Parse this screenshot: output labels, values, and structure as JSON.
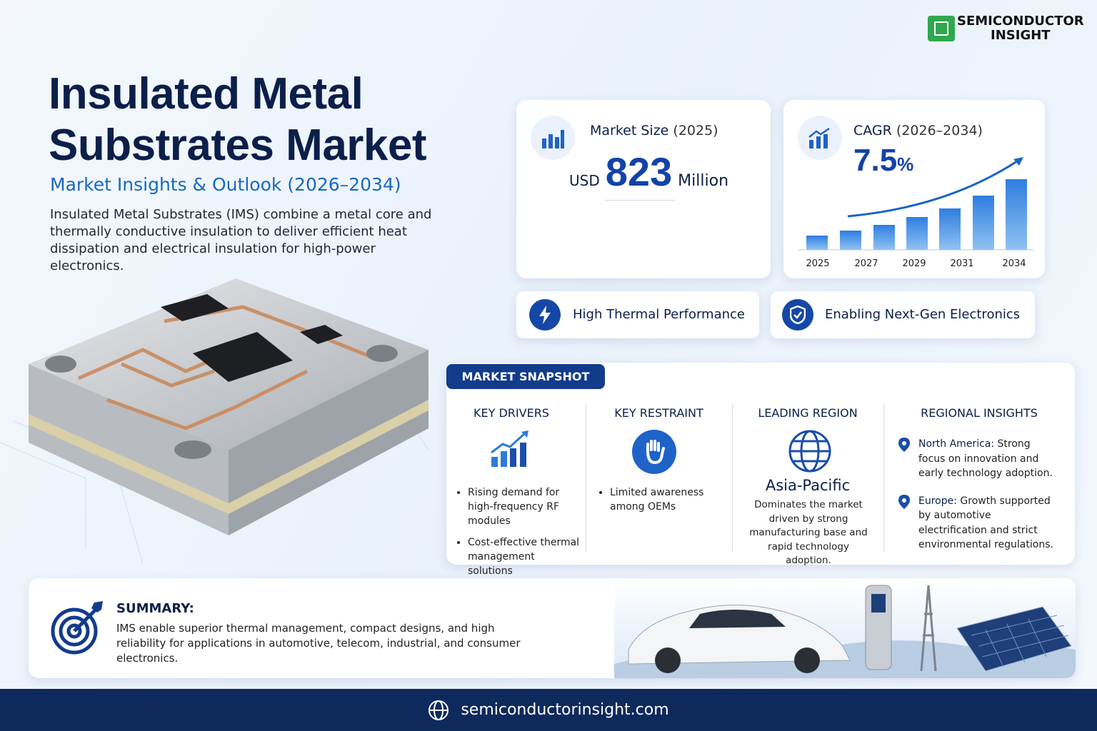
{
  "logo": {
    "line1": "SEMICONDUCTOR",
    "line2": "INSIGHT"
  },
  "header": {
    "title_line1": "Insulated Metal",
    "title_line2": "Substrates Market",
    "subtitle": "Market Insights & Outlook (2026–2034)",
    "description": "Insulated Metal Substrates (IMS) combine a metal core and thermally conductive insulation to deliver efficient heat dissipation and electrical insulation for high-power electronics."
  },
  "market_size": {
    "label": "Market Size",
    "period": "(2025)",
    "currency": "USD",
    "value": 823,
    "unit": "Million"
  },
  "cagr": {
    "label": "CAGR",
    "period": "(2026–2034)",
    "value": 7.5,
    "unit": "%",
    "years": [
      "2025",
      "2027",
      "2029",
      "2031",
      "2034"
    ]
  },
  "features": [
    "High Thermal Performance",
    "Enabling Next-Gen Electronics"
  ],
  "snapshot": {
    "title": "MARKET SNAPSHOT",
    "drivers": {
      "heading": "KEY DRIVERS",
      "items": [
        "Rising demand for high-frequency RF modules",
        "Cost-effective thermal management solutions"
      ]
    },
    "restraint": {
      "heading": "KEY RESTRAINT",
      "items": [
        "Limited awareness among OEMs"
      ]
    },
    "region": {
      "heading": "LEADING REGION",
      "name": "Asia-Pacific",
      "text": "Dominates the market driven by strong manufacturing base and rapid technology adoption."
    },
    "insights": {
      "heading": "REGIONAL INSIGHTS",
      "items": [
        {
          "region": "North America:",
          "text": "Strong focus on innovation and early technology adoption."
        },
        {
          "region": "Europe:",
          "text": "Growth supported by automotive electrification and strict environmental regulations."
        }
      ]
    }
  },
  "summary": {
    "heading": "SUMMARY:",
    "text": "IMS enable superior thermal management, compact designs, and high reliability for applications in automotive, telecom, industrial, and consumer electronics."
  },
  "footer": {
    "url": "semiconductorinsight.com"
  }
}
